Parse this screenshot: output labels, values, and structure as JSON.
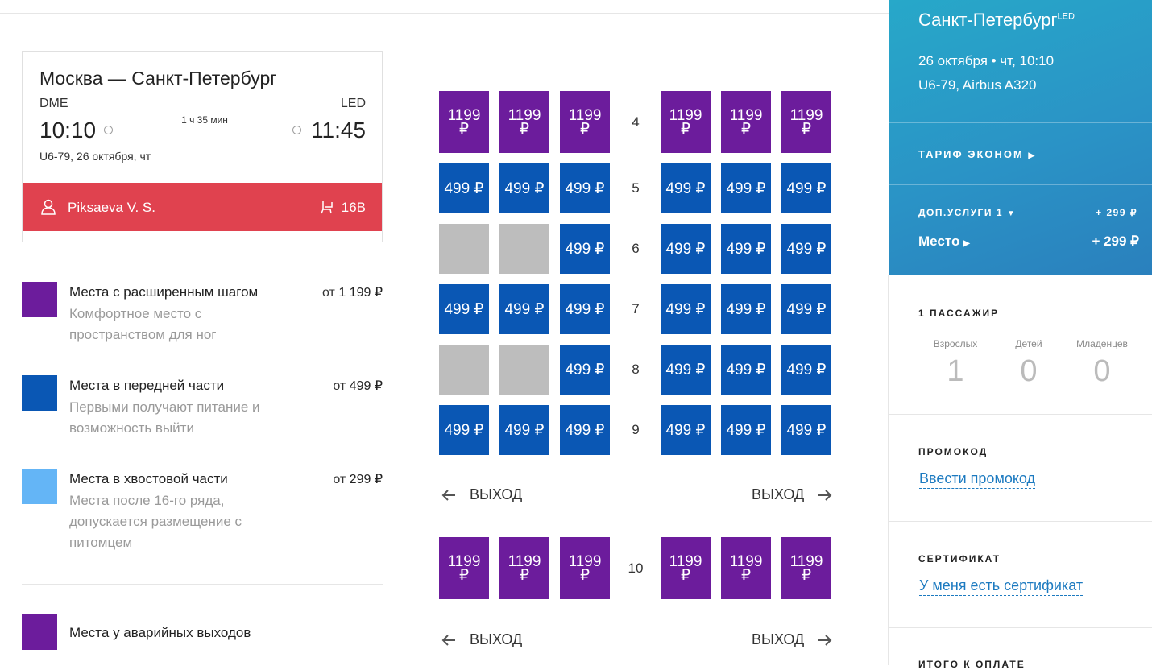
{
  "flight_card": {
    "route": "Москва — Санкт-Петербург",
    "from_code": "DME",
    "to_code": "LED",
    "dep_time": "10:10",
    "arr_time": "11:45",
    "duration": "1 ч 35 мин",
    "info": "U6-79, 26 октября, чт",
    "passenger": "Piksaeva V. S.",
    "seat": "16B"
  },
  "legend": [
    {
      "title": "Места с расширенным шагом",
      "desc": "Комфортное место с пространством для ног",
      "price_prefix": "от",
      "price": "1 199 ₽",
      "color": "#6c1c9c"
    },
    {
      "title": "Места в передней части",
      "desc": "Первыми получают питание и возможность выйти",
      "price_prefix": "от",
      "price": "499 ₽",
      "color": "#0a57b4"
    },
    {
      "title": "Места в хвостовой части",
      "desc": "Места после 16-го ряда, допускается размещение с питомцем",
      "price_prefix": "от",
      "price": "299 ₽",
      "color": "#64b5f6"
    },
    {
      "title": "Места у аварийных выходов",
      "color": "#6c1c9c"
    }
  ],
  "seatmap": {
    "rows": [
      {
        "number": "4",
        "seats": [
          "1199 ₽",
          "1199 ₽",
          "1199 ₽",
          "1199 ₽",
          "1199 ₽",
          "1199 ₽"
        ],
        "type": "purple"
      },
      {
        "number": "5",
        "seats": [
          "499 ₽",
          "499 ₽",
          "499 ₽",
          "499 ₽",
          "499 ₽",
          "499 ₽"
        ],
        "type": "blue"
      },
      {
        "number": "6",
        "seats": [
          "",
          "",
          "499 ₽",
          "499 ₽",
          "499 ₽",
          "499 ₽"
        ],
        "type": "blue"
      },
      {
        "number": "7",
        "seats": [
          "499 ₽",
          "499 ₽",
          "499 ₽",
          "499 ₽",
          "499 ₽",
          "499 ₽"
        ],
        "type": "blue"
      },
      {
        "number": "8",
        "seats": [
          "",
          "",
          "499 ₽",
          "499 ₽",
          "499 ₽",
          "499 ₽"
        ],
        "type": "blue"
      },
      {
        "number": "9",
        "seats": [
          "499 ₽",
          "499 ₽",
          "499 ₽",
          "499 ₽",
          "499 ₽",
          "499 ₽"
        ],
        "type": "blue"
      },
      {
        "number": "10",
        "seats": [
          "1199 ₽",
          "1199 ₽",
          "1199 ₽",
          "1199 ₽",
          "1199 ₽",
          "1199 ₽"
        ],
        "type": "purple"
      }
    ],
    "exit_label": "ВЫХОД"
  },
  "summary": {
    "city": "Санкт-Петербург",
    "city_code": "LED",
    "date": "26 октября • чт, 10:10",
    "flight": "U6-79, Airbus A320",
    "tariff": "ТАРИФ ЭКОНОМ",
    "extras_label": "ДОП.УСЛУГИ 1",
    "extras_price": "+ 299 ₽",
    "seat_label": "Место",
    "seat_price": "+ 299 ₽"
  },
  "passengers": {
    "header": "1 ПАССАЖИР",
    "adults_label": "Взрослых",
    "adults": "1",
    "children_label": "Детей",
    "children": "0",
    "infants_label": "Младенцев",
    "infants": "0"
  },
  "promo": {
    "header": "ПРОМОКОД",
    "link": "Ввести промокод"
  },
  "certificate": {
    "header": "СЕРТИФИКАТ",
    "link": "У меня есть сертификат"
  },
  "total": {
    "header": "ИТОГО К ОПЛАТЕ"
  }
}
